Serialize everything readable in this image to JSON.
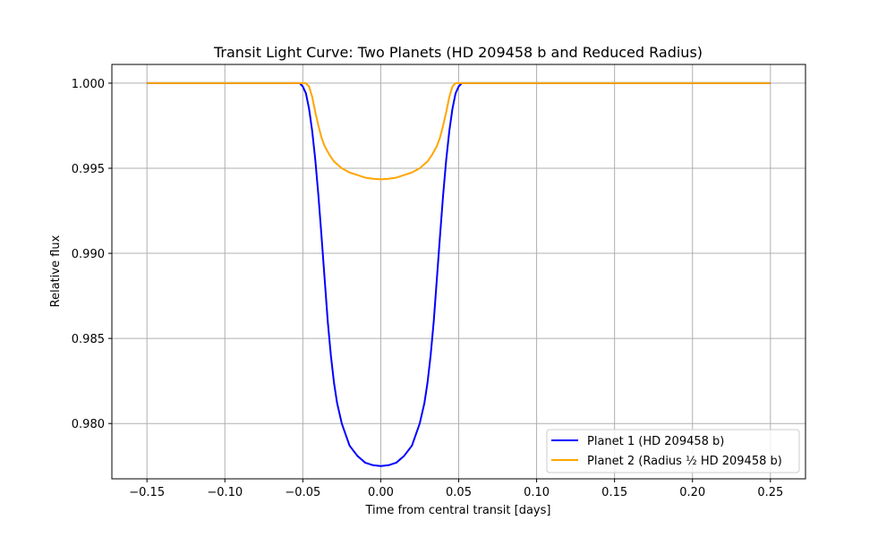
{
  "chart_data": {
    "type": "line",
    "title": "Transit Light Curve: Two Planets (HD 209458 b and Reduced Radius)",
    "xlabel": "Time from central transit [days]",
    "ylabel": "Relative flux",
    "xlim": [
      -0.1725,
      0.2725
    ],
    "ylim": [
      0.97675,
      1.0011
    ],
    "x_ticks": [
      -0.15,
      -0.1,
      -0.05,
      0.0,
      0.05,
      0.1,
      0.15,
      0.2,
      0.25
    ],
    "x_tick_labels": [
      "−0.15",
      "−0.10",
      "−0.05",
      "0.00",
      "0.05",
      "0.10",
      "0.15",
      "0.20",
      "0.25"
    ],
    "y_ticks": [
      0.98,
      0.985,
      0.99,
      0.995,
      1.0
    ],
    "y_tick_labels": [
      "0.980",
      "0.985",
      "0.990",
      "0.995",
      "1.000"
    ],
    "grid": true,
    "legend_position": "lower-right",
    "series": [
      {
        "name": "Planet 1 (HD 209458 b)",
        "color": "#0000ff",
        "points": [
          [
            -0.15,
            1.0
          ],
          [
            -0.052,
            1.0
          ],
          [
            -0.05,
            0.9998
          ],
          [
            -0.048,
            0.9994
          ],
          [
            -0.046,
            0.9985
          ],
          [
            -0.044,
            0.9972
          ],
          [
            -0.042,
            0.9955
          ],
          [
            -0.04,
            0.9934
          ],
          [
            -0.038,
            0.991
          ],
          [
            -0.036,
            0.9885
          ],
          [
            -0.034,
            0.986
          ],
          [
            -0.032,
            0.984
          ],
          [
            -0.03,
            0.9824
          ],
          [
            -0.028,
            0.9812
          ],
          [
            -0.025,
            0.98
          ],
          [
            -0.02,
            0.9787
          ],
          [
            -0.015,
            0.9781
          ],
          [
            -0.01,
            0.9777
          ],
          [
            -0.005,
            0.97755
          ],
          [
            0.0,
            0.9775
          ],
          [
            0.005,
            0.97755
          ],
          [
            0.01,
            0.9777
          ],
          [
            0.015,
            0.9781
          ],
          [
            0.02,
            0.9787
          ],
          [
            0.025,
            0.98
          ],
          [
            0.028,
            0.9812
          ],
          [
            0.03,
            0.9824
          ],
          [
            0.032,
            0.984
          ],
          [
            0.034,
            0.986
          ],
          [
            0.036,
            0.9885
          ],
          [
            0.038,
            0.991
          ],
          [
            0.04,
            0.9934
          ],
          [
            0.042,
            0.9955
          ],
          [
            0.044,
            0.9972
          ],
          [
            0.046,
            0.9985
          ],
          [
            0.048,
            0.9994
          ],
          [
            0.05,
            0.9998
          ],
          [
            0.052,
            1.0
          ],
          [
            0.25,
            1.0
          ]
        ]
      },
      {
        "name": "Planet 2 (Radius ½ HD 209458 b)",
        "color": "#ffa500",
        "points": [
          [
            -0.15,
            1.0
          ],
          [
            -0.048,
            1.0
          ],
          [
            -0.046,
            0.9998
          ],
          [
            -0.044,
            0.9992
          ],
          [
            -0.042,
            0.9983
          ],
          [
            -0.04,
            0.9975
          ],
          [
            -0.038,
            0.9968
          ],
          [
            -0.036,
            0.9963
          ],
          [
            -0.033,
            0.9958
          ],
          [
            -0.03,
            0.9954
          ],
          [
            -0.025,
            0.995
          ],
          [
            -0.02,
            0.99475
          ],
          [
            -0.015,
            0.9946
          ],
          [
            -0.01,
            0.99445
          ],
          [
            -0.005,
            0.99438
          ],
          [
            0.0,
            0.99435
          ],
          [
            0.005,
            0.99438
          ],
          [
            0.01,
            0.99445
          ],
          [
            0.015,
            0.9946
          ],
          [
            0.02,
            0.99475
          ],
          [
            0.025,
            0.995
          ],
          [
            0.03,
            0.9954
          ],
          [
            0.033,
            0.9958
          ],
          [
            0.036,
            0.9963
          ],
          [
            0.038,
            0.9968
          ],
          [
            0.04,
            0.9975
          ],
          [
            0.042,
            0.9983
          ],
          [
            0.044,
            0.9992
          ],
          [
            0.046,
            0.9998
          ],
          [
            0.048,
            1.0
          ],
          [
            0.25,
            1.0
          ]
        ]
      }
    ]
  }
}
